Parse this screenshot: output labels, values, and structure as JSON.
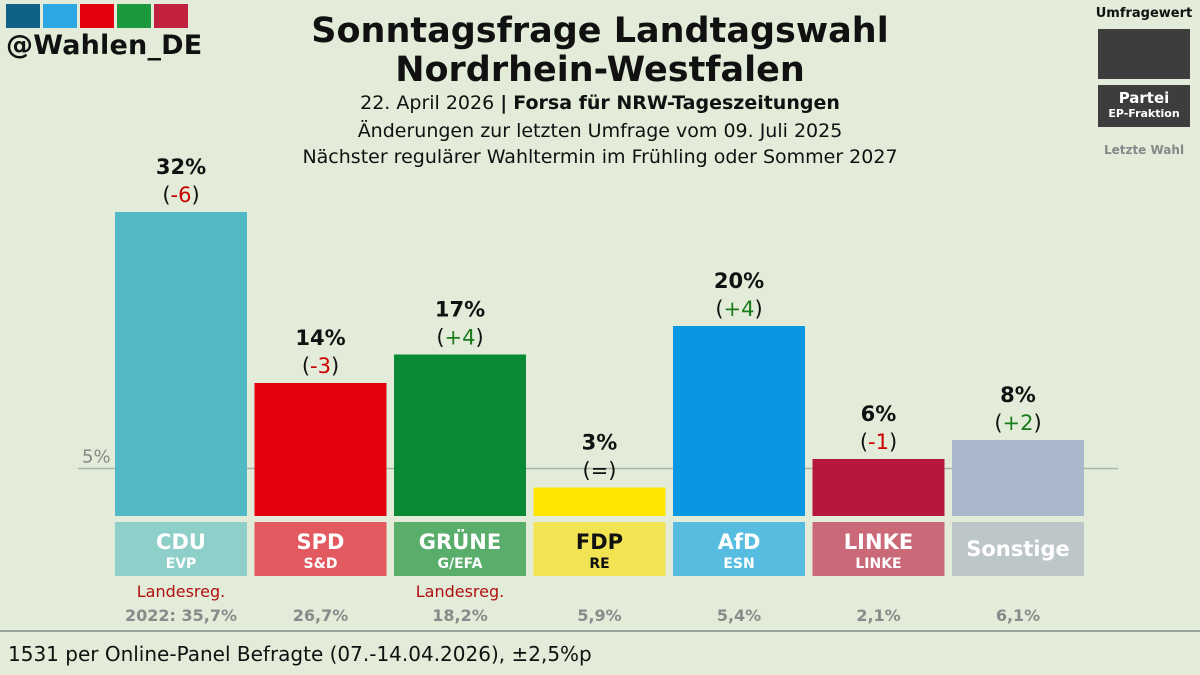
{
  "handle": "@Wahlen_DE",
  "logo_colors": [
    "#0e6286",
    "#2fa7e4",
    "#e3000f",
    "#1a9a3c",
    "#c2203f"
  ],
  "title_line1": "Sonntagsfrage Landtagswahl",
  "title_line2": "Nordrhein-Westfalen",
  "date": "22. April 2026",
  "separator": "|",
  "institute": "Forsa für NRW-Tageszeitungen",
  "changes_note": "Änderungen zur letzten Umfrage vom 09. Juli 2025",
  "next_election": "Nächster regulärer Wahltermin im Frühling oder Sommer 2027",
  "legend": {
    "title": "Umfragewert",
    "party": "Partei",
    "faction": "EP-Fraktion",
    "last_election": "Letzte Wahl"
  },
  "footer": "1531 per Online-Panel Befragte (07.-14.04.2026), ±2,5%p",
  "chart_data": {
    "type": "bar",
    "categories": [
      "CDU",
      "SPD",
      "GRÜNE",
      "FDP",
      "AfD",
      "LINKE",
      "Sonstige"
    ],
    "factions": [
      "EVP",
      "S&D",
      "G/EFA",
      "RE",
      "ESN",
      "LINKE",
      ""
    ],
    "values": [
      32,
      14,
      17,
      3,
      20,
      6,
      8
    ],
    "value_labels": [
      "32%",
      "14%",
      "17%",
      "3%",
      "20%",
      "6%",
      "8%"
    ],
    "change_labels": [
      "-6",
      "-3",
      "+4",
      "=",
      "+4",
      "-1",
      "+2"
    ],
    "change_direction": [
      "down",
      "down",
      "up",
      "same",
      "up",
      "down",
      "up"
    ],
    "government": [
      "Landesreg.",
      "",
      "Landesreg.",
      "",
      "",
      "",
      ""
    ],
    "last_election_labels": [
      "2022: 35,7%",
      "26,7%",
      "18,2%",
      "5,9%",
      "5,4%",
      "2,1%",
      "6,1%"
    ],
    "bar_colors": [
      "#52b8c5",
      "#e3000f",
      "#0a8a35",
      "#ffe500",
      "#0897e0",
      "#b5183c",
      "#aab8cc"
    ],
    "label_colors": [
      "#8fcfc9",
      "#e25a5f",
      "#5aae6c",
      "#f2e352",
      "#57bde0",
      "#ca6a78",
      "#bdc6c8"
    ],
    "label_text_colors": [
      "#ffffff",
      "#ffffff",
      "#ffffff",
      "#111111",
      "#ffffff",
      "#ffffff",
      "#ffffff"
    ],
    "threshold": 5,
    "threshold_label": "5%",
    "ylim": [
      0,
      32
    ],
    "up_color": "#1b7a1b",
    "down_color": "#cc0000"
  }
}
